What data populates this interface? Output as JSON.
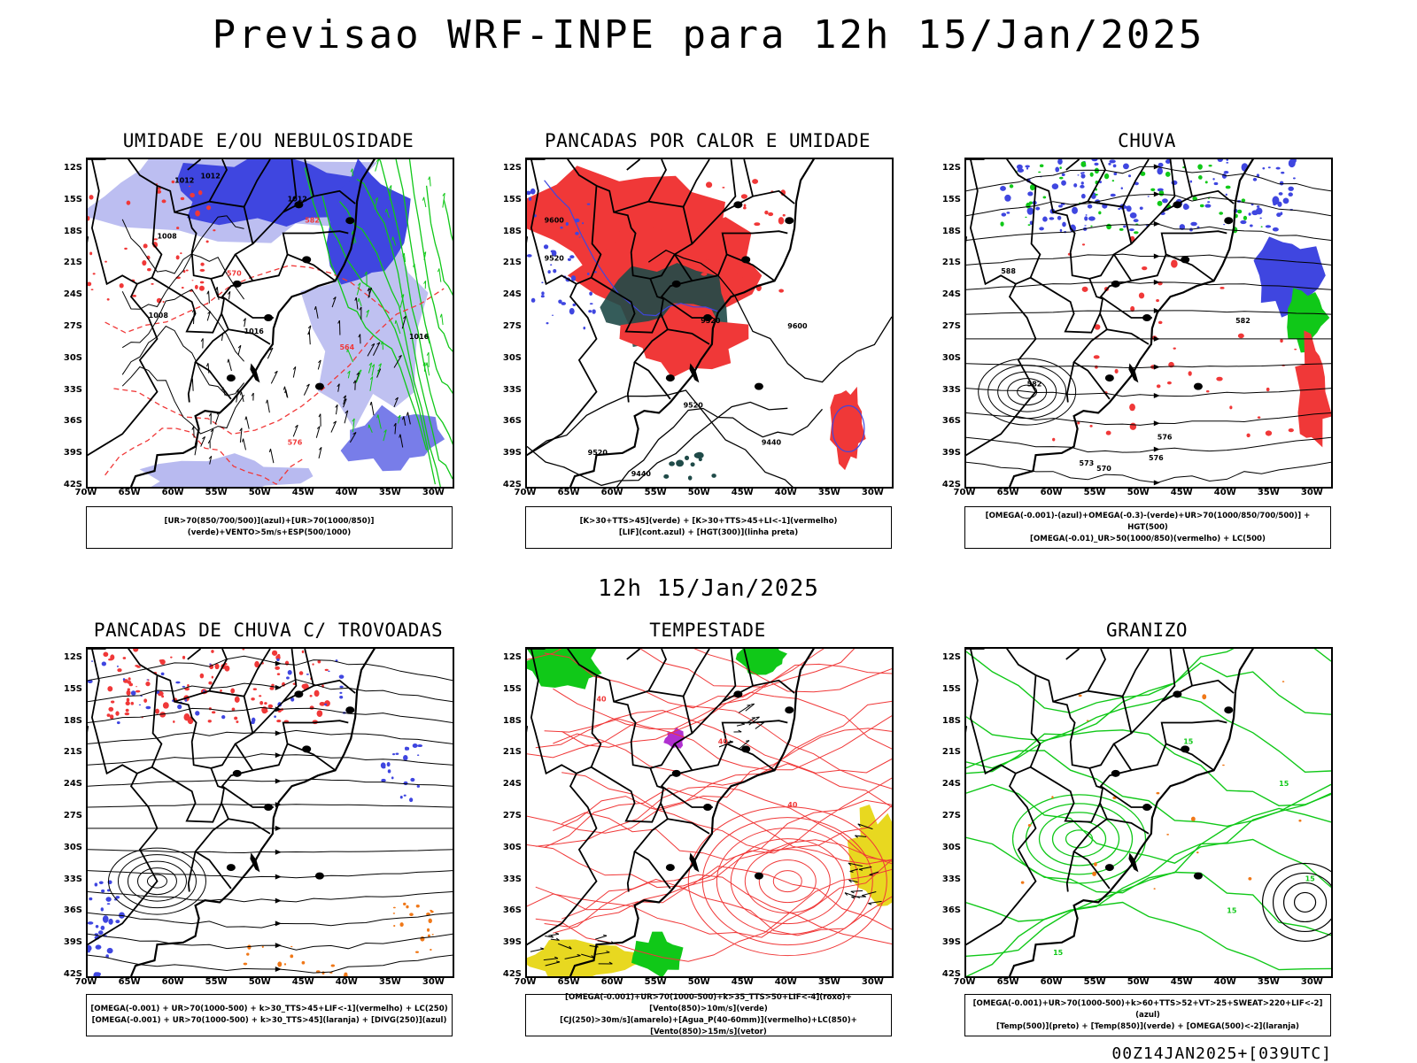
{
  "header": {
    "title": "Previsao WRF-INPE  para 12h 15/Jan/2025"
  },
  "mid": {
    "title": "12h 15/Jan/2025"
  },
  "footer": {
    "stamp": "00Z14JAN2025+[039UTC]"
  },
  "axes": {
    "lat_labels": [
      "12S",
      "15S",
      "18S",
      "21S",
      "24S",
      "27S",
      "30S",
      "33S",
      "36S",
      "39S",
      "42S"
    ],
    "lon_labels": [
      "70W",
      "65W",
      "60W",
      "55W",
      "50W",
      "45W",
      "40W",
      "35W",
      "30W"
    ]
  },
  "colors": {
    "blue": "#3f46e0",
    "light_blue": "#b8baf0",
    "green": "#10c818",
    "red": "#f03838",
    "dark_teal": "#1f4a48",
    "yellow": "#e8d820",
    "purple": "#b030d0",
    "orange": "#f07818",
    "black": "#000000"
  },
  "panels": [
    {
      "id": "umidade",
      "title": "UMIDADE E/OU NEBULOSIDADE",
      "legend": [
        "[UR>70(850/700/500)](azul)+[UR>70(1000/850)](verde)+VENTO>5m/s+ESP(500/1000)"
      ],
      "contour_labels": [
        "1012",
        "1012",
        "1012",
        "1008",
        "1008",
        "1016",
        "1016",
        "576",
        "570",
        "564",
        "582"
      ]
    },
    {
      "id": "pancadas-calor",
      "title": "PANCADAS POR CALOR E UMIDADE",
      "legend": [
        "[K>30+TTS>45](verde)  +  [K>30+TTS>45+LI<-1](vermelho)",
        "[LIF](cont.azul)  +  [HGT(300)](linha preta)"
      ],
      "contour_labels": [
        "9600",
        "9520",
        "9600",
        "9520",
        "9520",
        "9440",
        "9520",
        "9440"
      ]
    },
    {
      "id": "chuva",
      "title": "CHUVA",
      "legend": [
        "[OMEGA(-0.001)-(azul)+OMEGA(-0.3)-(verde)+UR>70(1000/850/700/500)]  +  HGT(500)",
        "[OMEGA(-0.01)_UR>50(1000/850)(vermelho)  +  LC(500)"
      ],
      "contour_labels": [
        "582",
        "582",
        "588",
        "576",
        "573",
        "570",
        "576"
      ]
    },
    {
      "id": "pancadas-trovoadas",
      "title": "PANCADAS DE CHUVA C/ TROVOADAS",
      "legend": [
        "[OMEGA(-0.001)  +  UR>70(1000-500)  +  k>30_TTS>45+LIF<-1](vermelho)  +  LC(250)",
        "[OMEGA(-0.001)  +  UR>70(1000-500)  +  k>30_TTS>45](laranja)  +  [DIVG(250)](azul)"
      ],
      "contour_labels": []
    },
    {
      "id": "tempestade",
      "title": "TEMPESTADE",
      "legend": [
        "[OMEGA(-0.001)+UR>70(1000-500)+k>35_TTS>50+LIF<-4](roxo)+[Vento(850)>10m/s](verde)",
        "[CJ(250)>30m/s](amarelo)+[Agua_P(40-60mm)](vermelho)+LC(850)+[Vento(850)>15m/s](vetor)"
      ],
      "contour_labels": [
        "40",
        "40",
        "40"
      ]
    },
    {
      "id": "granizo",
      "title": "GRANIZO",
      "legend": [
        "[OMEGA(-0.001)+UR>70(1000-500)+k>60+TTS>52+VT>25+SWEAT>220+LIF<-2](azul)",
        "[Temp(500)](preto)  +  [Temp(850)](verde)  +  [OMEGA(500)<-2](laranja)"
      ],
      "contour_labels": [
        "15",
        "15",
        "15",
        "15",
        "15"
      ]
    }
  ]
}
